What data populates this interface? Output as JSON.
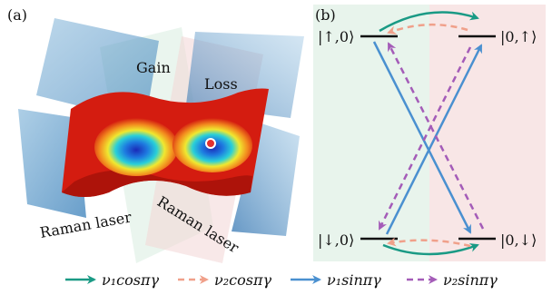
{
  "panel_a": {
    "label": "(a)",
    "gain_label": "Gain",
    "loss_label": "Loss",
    "raman_left": "Raman laser",
    "raman_right": "Raman laser"
  },
  "panel_b": {
    "label": "(b)",
    "states": {
      "up0": "|↑,0⟩",
      "zero_up": "|0,↑⟩",
      "down0": "|↓,0⟩",
      "zero_down": "|0,↓⟩"
    },
    "colors": {
      "gain_bg": "#e8f4ec",
      "loss_bg": "#f8e6e6",
      "teal": "#1a9a85",
      "salmon": "#f0a08a",
      "blue": "#4a90d0",
      "purple": "#a45cb8"
    }
  },
  "legend": [
    {
      "text": "ν₁cosπγ",
      "style": "solid",
      "color": "#1a9a85"
    },
    {
      "text": "ν₂cosπγ",
      "style": "dashed",
      "color": "#f0a08a"
    },
    {
      "text": "ν₁sinπγ",
      "style": "solid",
      "color": "#4a90d0"
    },
    {
      "text": "ν₂sinπγ",
      "style": "dashed",
      "color": "#a45cb8"
    }
  ]
}
